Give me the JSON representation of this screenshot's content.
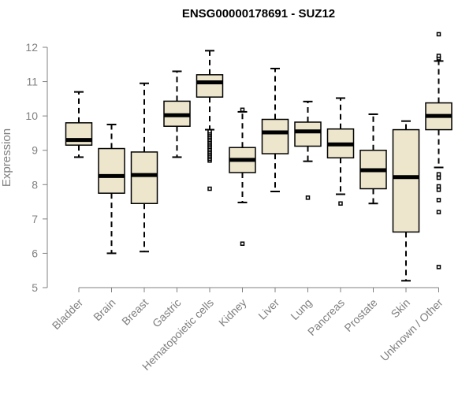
{
  "chart_data": {
    "type": "boxplot",
    "title": "ENSG00000178691 - SUZ12",
    "xlabel": "",
    "ylabel": "Expression",
    "ylim": [
      5,
      12
    ],
    "yticks": [
      5,
      6,
      7,
      8,
      9,
      10,
      11,
      12
    ],
    "box_fill": "#ede6cc",
    "stroke_color": "#000000",
    "label_color": "#808080",
    "categories": [
      "Bladder",
      "Brain",
      "Breast",
      "Gastric",
      "Hematopoietic cells",
      "Kidney",
      "Liver",
      "Lung",
      "Pancreas",
      "Prostate",
      "Skin",
      "Unknown / Other"
    ],
    "boxes": [
      {
        "name": "Bladder",
        "whisker_low": 8.8,
        "q1": 9.15,
        "median": 9.3,
        "q3": 9.8,
        "whisker_high": 10.7,
        "outliers": []
      },
      {
        "name": "Brain",
        "whisker_low": 6.0,
        "q1": 7.75,
        "median": 8.25,
        "q3": 9.05,
        "whisker_high": 9.75,
        "outliers": []
      },
      {
        "name": "Breast",
        "whisker_low": 6.05,
        "q1": 7.45,
        "median": 8.28,
        "q3": 8.95,
        "whisker_high": 10.95,
        "outliers": []
      },
      {
        "name": "Gastric",
        "whisker_low": 8.8,
        "q1": 9.7,
        "median": 10.02,
        "q3": 10.43,
        "whisker_high": 11.3,
        "outliers": []
      },
      {
        "name": "Hematopoietic cells",
        "whisker_low": 9.6,
        "q1": 10.55,
        "median": 10.98,
        "q3": 11.2,
        "whisker_high": 11.9,
        "outliers": [
          7.88,
          8.7,
          8.75,
          8.8,
          8.85,
          8.9,
          8.95,
          9.0,
          9.05,
          9.1,
          9.15,
          9.2,
          9.25,
          9.3,
          9.35,
          9.4,
          9.45,
          9.5,
          9.55
        ]
      },
      {
        "name": "Kidney",
        "whisker_low": 7.48,
        "q1": 8.35,
        "median": 8.72,
        "q3": 9.08,
        "whisker_high": 10.12,
        "outliers": [
          6.28,
          10.18
        ]
      },
      {
        "name": "Liver",
        "whisker_low": 7.8,
        "q1": 8.9,
        "median": 9.52,
        "q3": 9.9,
        "whisker_high": 11.38,
        "outliers": []
      },
      {
        "name": "Lung",
        "whisker_low": 8.68,
        "q1": 9.12,
        "median": 9.55,
        "q3": 9.82,
        "whisker_high": 10.42,
        "outliers": [
          7.62
        ]
      },
      {
        "name": "Pancreas",
        "whisker_low": 7.72,
        "q1": 8.78,
        "median": 9.17,
        "q3": 9.62,
        "whisker_high": 10.52,
        "outliers": [
          7.45
        ]
      },
      {
        "name": "Prostate",
        "whisker_low": 7.45,
        "q1": 7.88,
        "median": 8.42,
        "q3": 9.0,
        "whisker_high": 10.05,
        "outliers": []
      },
      {
        "name": "Skin",
        "whisker_low": 5.2,
        "q1": 6.62,
        "median": 8.22,
        "q3": 9.6,
        "whisker_high": 9.85,
        "outliers": []
      },
      {
        "name": "Unknown / Other",
        "whisker_low": 8.5,
        "q1": 9.6,
        "median": 10.0,
        "q3": 10.38,
        "whisker_high": 11.6,
        "outliers": [
          5.6,
          7.2,
          7.55,
          7.85,
          7.95,
          8.2,
          8.3,
          11.68,
          11.75,
          12.38
        ]
      }
    ]
  }
}
